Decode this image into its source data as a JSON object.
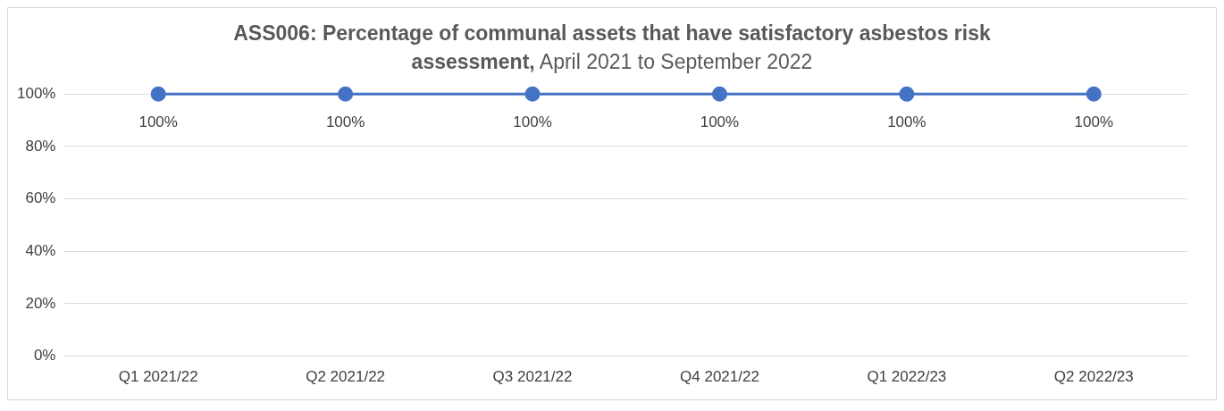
{
  "chart_data": {
    "type": "line",
    "title": "ASS006: Percentage of communal assets that have satisfactory asbestos risk assessment,",
    "subtitle": "April 2021 to September 2022",
    "categories": [
      "Q1 2021/22",
      "Q2 2021/22",
      "Q3 2021/22",
      "Q4 2021/22",
      "Q1 2022/23",
      "Q2 2022/23"
    ],
    "series": [
      {
        "color": "#4472c4",
        "values": [
          100,
          100,
          100,
          100,
          100,
          100
        ],
        "value_labels": [
          "100%",
          "100%",
          "100%",
          "100%",
          "100%",
          "100%"
        ]
      }
    ],
    "ylim": [
      0,
      100
    ],
    "yticks": [
      {
        "value": 0,
        "label": "0%"
      },
      {
        "value": 20,
        "label": "20%"
      },
      {
        "value": 40,
        "label": "40%"
      },
      {
        "value": 60,
        "label": "60%"
      },
      {
        "value": 80,
        "label": "80%"
      },
      {
        "value": 100,
        "label": "100%"
      }
    ],
    "grid": "y",
    "legend": false,
    "marker": "circle",
    "line_style": "solid"
  }
}
